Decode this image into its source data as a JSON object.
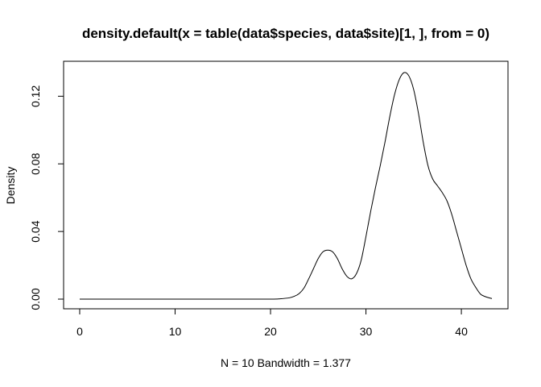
{
  "chart_data": {
    "type": "line",
    "title": "density.default(x = table(data$species, data$site)[1, ], from = 0)",
    "xlabel": "N = 10   Bandwidth = 1.377",
    "ylabel": "Density",
    "xlim": [
      0,
      43.2
    ],
    "ylim": [
      0,
      0.134
    ],
    "x_ticks": [
      0,
      10,
      20,
      30,
      40
    ],
    "x_tick_labels": [
      "0",
      "10",
      "20",
      "30",
      "40"
    ],
    "y_ticks": [
      0.0,
      0.04,
      0.08,
      0.12
    ],
    "y_tick_labels": [
      "0.00",
      "0.04",
      "0.08",
      "0.12"
    ],
    "grid": false,
    "series": [
      {
        "x": [
          0,
          5,
          10,
          15,
          20,
          21,
          22,
          22.5,
          23,
          23.5,
          24,
          24.5,
          25,
          25.5,
          26,
          26.5,
          27,
          27.5,
          28,
          28.5,
          29,
          29.5,
          30,
          30.5,
          31,
          31.5,
          32,
          32.5,
          33,
          33.5,
          34,
          34.5,
          35,
          35.5,
          36,
          36.5,
          37,
          37.5,
          38,
          38.5,
          39,
          39.5,
          40,
          40.5,
          41,
          41.5,
          42,
          42.5,
          43.2
        ],
        "y": [
          0,
          0,
          0,
          0,
          0,
          0.0002,
          0.0008,
          0.0017,
          0.0033,
          0.0065,
          0.012,
          0.018,
          0.024,
          0.028,
          0.029,
          0.028,
          0.024,
          0.018,
          0.0135,
          0.012,
          0.015,
          0.023,
          0.037,
          0.052,
          0.066,
          0.079,
          0.093,
          0.108,
          0.121,
          0.13,
          0.134,
          0.132,
          0.124,
          0.11,
          0.093,
          0.079,
          0.071,
          0.067,
          0.063,
          0.058,
          0.05,
          0.04,
          0.03,
          0.02,
          0.012,
          0.007,
          0.003,
          0.0015,
          0.0003
        ]
      }
    ]
  }
}
